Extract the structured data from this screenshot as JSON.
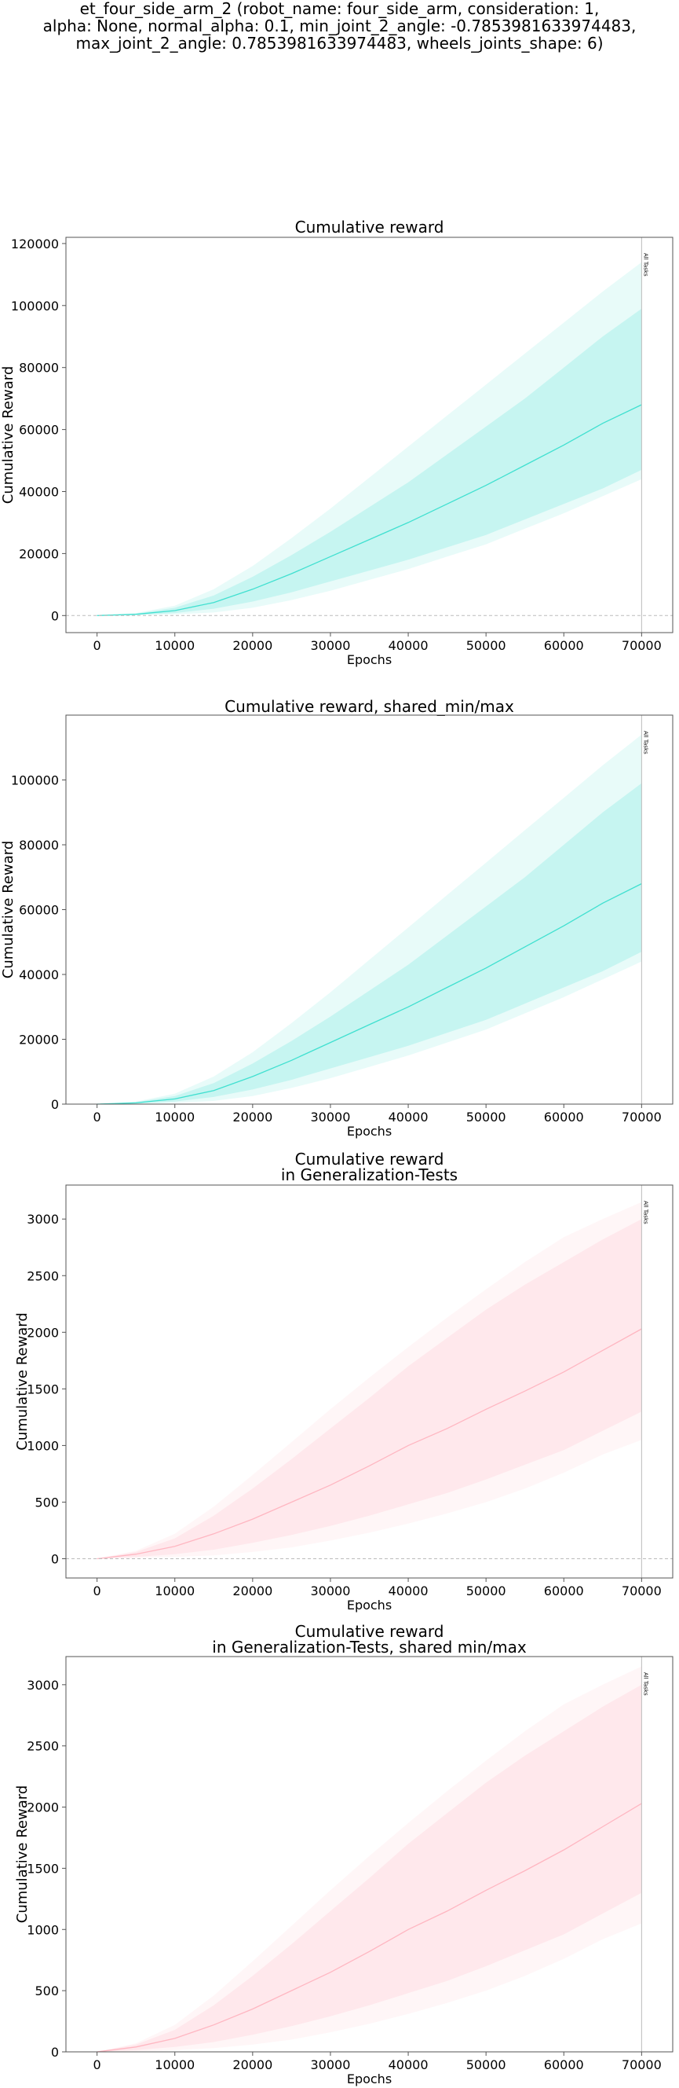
{
  "suptitle": [
    "et_four_side_arm_2 (robot_name: four_side_arm, consideration: 1,",
    "alpha: None, normal_alpha: 0.1, min_joint_2_angle: -0.7853981633974483,",
    "max_joint_2_angle: 0.7853981633974483, wheels_joints_shape: 6)"
  ],
  "chart_data": [
    {
      "type": "line",
      "title": [
        "Cumulative reward"
      ],
      "xlabel": "Epochs",
      "ylabel": "Cumulative Reward",
      "xlim": [
        -4000,
        74000
      ],
      "ylim": [
        -5500,
        122000
      ],
      "xticks": [
        0,
        10000,
        20000,
        30000,
        40000,
        50000,
        60000,
        70000
      ],
      "yticks": [
        0,
        20000,
        40000,
        60000,
        80000,
        100000,
        120000
      ],
      "zero_line": true,
      "vline": {
        "x": 70000,
        "label": "All Tasks"
      },
      "color": "#40e0d0",
      "series": [
        {
          "x": [
            0,
            5000,
            10000,
            15000,
            20000,
            25000,
            30000,
            35000,
            40000,
            45000,
            50000,
            55000,
            60000,
            65000,
            70000
          ],
          "mean": [
            0,
            400,
            1600,
            4200,
            8500,
            13500,
            19000,
            24500,
            30000,
            36000,
            42000,
            48500,
            55000,
            62000,
            68000
          ],
          "std_low": [
            0,
            200,
            800,
            2200,
            4500,
            7500,
            11000,
            14500,
            18000,
            22000,
            26000,
            31000,
            36000,
            41000,
            47000
          ],
          "std_high": [
            0,
            600,
            2500,
            6500,
            12500,
            19500,
            27000,
            35000,
            43000,
            52000,
            61000,
            70000,
            80000,
            90000,
            99000
          ],
          "min": [
            0,
            100,
            400,
            1000,
            2500,
            5000,
            8000,
            11500,
            15000,
            19000,
            23000,
            28000,
            33000,
            38500,
            44000
          ],
          "max": [
            0,
            800,
            3200,
            8500,
            16000,
            25000,
            34500,
            44500,
            54500,
            64500,
            74500,
            84500,
            94500,
            104500,
            114000
          ]
        }
      ]
    },
    {
      "type": "line",
      "title": [
        "Cumulative reward, shared_min/max"
      ],
      "xlabel": "Epochs",
      "ylabel": "Cumulative Reward",
      "xlim": [
        -4000,
        74000
      ],
      "ylim": [
        0,
        120000
      ],
      "xticks": [
        0,
        10000,
        20000,
        30000,
        40000,
        50000,
        60000,
        70000
      ],
      "yticks": [
        0,
        20000,
        40000,
        60000,
        80000,
        100000
      ],
      "zero_line": false,
      "vline": {
        "x": 70000,
        "label": "All Tasks"
      },
      "color": "#40e0d0",
      "series": [
        {
          "x": [
            0,
            5000,
            10000,
            15000,
            20000,
            25000,
            30000,
            35000,
            40000,
            45000,
            50000,
            55000,
            60000,
            65000,
            70000
          ],
          "mean": [
            0,
            400,
            1600,
            4200,
            8500,
            13500,
            19000,
            24500,
            30000,
            36000,
            42000,
            48500,
            55000,
            62000,
            68000
          ],
          "std_low": [
            0,
            200,
            800,
            2200,
            4500,
            7500,
            11000,
            14500,
            18000,
            22000,
            26000,
            31000,
            36000,
            41000,
            47000
          ],
          "std_high": [
            0,
            600,
            2500,
            6500,
            12500,
            19500,
            27000,
            35000,
            43000,
            52000,
            61000,
            70000,
            80000,
            90000,
            99000
          ],
          "min": [
            0,
            100,
            400,
            1000,
            2500,
            5000,
            8000,
            11500,
            15000,
            19000,
            23000,
            28000,
            33000,
            38500,
            44000
          ],
          "max": [
            0,
            800,
            3200,
            8500,
            16000,
            25000,
            34500,
            44500,
            54500,
            64500,
            74500,
            84500,
            94500,
            104500,
            114000
          ]
        }
      ]
    },
    {
      "type": "line",
      "title": [
        "Cumulative reward",
        "in Generalization-Tests"
      ],
      "xlabel": "Epochs",
      "ylabel": "Cumulative Reward",
      "xlim": [
        -4000,
        74000
      ],
      "ylim": [
        -170,
        3300
      ],
      "xticks": [
        0,
        10000,
        20000,
        30000,
        40000,
        50000,
        60000,
        70000
      ],
      "yticks": [
        0,
        500,
        1000,
        1500,
        2000,
        2500,
        3000
      ],
      "zero_line": true,
      "vline": {
        "x": 70000,
        "label": "All Tasks"
      },
      "color": "#ffb6c1",
      "series": [
        {
          "x": [
            0,
            5000,
            10000,
            15000,
            20000,
            25000,
            30000,
            35000,
            40000,
            45000,
            50000,
            55000,
            60000,
            65000,
            70000
          ],
          "mean": [
            0,
            40,
            110,
            220,
            350,
            500,
            650,
            820,
            1000,
            1150,
            1320,
            1480,
            1650,
            1840,
            2030
          ],
          "std_low": [
            0,
            15,
            40,
            80,
            140,
            210,
            290,
            380,
            480,
            580,
            700,
            830,
            960,
            1130,
            1300
          ],
          "std_high": [
            0,
            60,
            180,
            380,
            620,
            880,
            1150,
            1420,
            1700,
            1950,
            2200,
            2420,
            2620,
            2820,
            3000
          ],
          "min": [
            0,
            5,
            15,
            30,
            60,
            100,
            160,
            230,
            310,
            400,
            500,
            620,
            760,
            920,
            1050
          ],
          "max": [
            0,
            70,
            220,
            460,
            740,
            1030,
            1320,
            1600,
            1870,
            2130,
            2380,
            2620,
            2840,
            3000,
            3150
          ]
        }
      ]
    },
    {
      "type": "line",
      "title": [
        "Cumulative reward",
        "in Generalization-Tests, shared min/max"
      ],
      "xlabel": "Epochs",
      "ylabel": "Cumulative Reward",
      "xlim": [
        -4000,
        74000
      ],
      "ylim": [
        0,
        3230
      ],
      "xticks": [
        0,
        10000,
        20000,
        30000,
        40000,
        50000,
        60000,
        70000
      ],
      "yticks": [
        0,
        500,
        1000,
        1500,
        2000,
        2500,
        3000
      ],
      "zero_line": false,
      "vline": {
        "x": 70000,
        "label": "All Tasks"
      },
      "color": "#ffb6c1",
      "series": [
        {
          "x": [
            0,
            5000,
            10000,
            15000,
            20000,
            25000,
            30000,
            35000,
            40000,
            45000,
            50000,
            55000,
            60000,
            65000,
            70000
          ],
          "mean": [
            0,
            40,
            110,
            220,
            350,
            500,
            650,
            820,
            1000,
            1150,
            1320,
            1480,
            1650,
            1840,
            2030
          ],
          "std_low": [
            0,
            15,
            40,
            80,
            140,
            210,
            290,
            380,
            480,
            580,
            700,
            830,
            960,
            1130,
            1300
          ],
          "std_high": [
            0,
            60,
            180,
            380,
            620,
            880,
            1150,
            1420,
            1700,
            1950,
            2200,
            2420,
            2620,
            2820,
            3000
          ],
          "min": [
            0,
            5,
            15,
            30,
            60,
            100,
            160,
            230,
            310,
            400,
            500,
            620,
            760,
            920,
            1050
          ],
          "max": [
            0,
            70,
            220,
            460,
            740,
            1030,
            1320,
            1600,
            1870,
            2130,
            2380,
            2620,
            2840,
            3000,
            3150
          ]
        }
      ]
    }
  ]
}
